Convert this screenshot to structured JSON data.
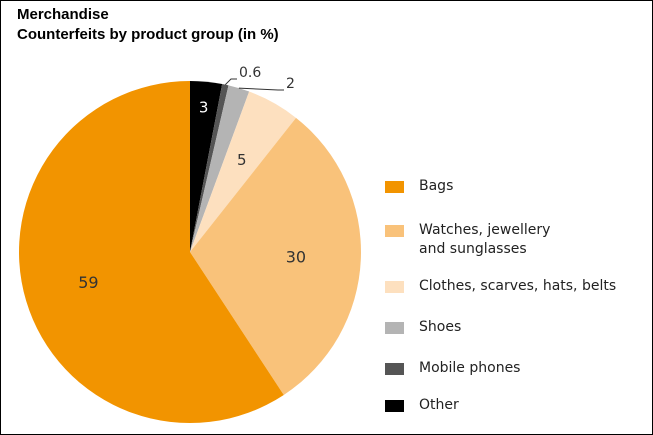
{
  "chart_data": {
    "type": "pie",
    "title": "Merchandise",
    "subtitle": "Counterfeits by product group (in %)",
    "start": "12 o'clock",
    "direction": "clockwise",
    "slices": [
      {
        "label": "Other",
        "value": 3,
        "value_label": "3",
        "color": "#000000",
        "label_color": "#ffffff"
      },
      {
        "label": "Mobile phones",
        "value": 0.6,
        "value_label": "0.6",
        "color": "#555555",
        "label_color": "#333333"
      },
      {
        "label": "Shoes",
        "value": 2,
        "value_label": "2",
        "color": "#b4b4b4",
        "label_color": "#333333"
      },
      {
        "label": "Clothes, scarves, hats, belts",
        "value": 5,
        "value_label": "5",
        "color": "#fde0bf",
        "label_color": "#333333"
      },
      {
        "label": "Watches, jewellery and sunglasses",
        "value": 30,
        "value_label": "30",
        "color": "#f9c27a",
        "label_color": "#333333"
      },
      {
        "label": "Bags",
        "value": 59,
        "value_label": "59",
        "color": "#f29400",
        "label_color": "#333333"
      }
    ],
    "legend": {
      "placement": "right",
      "items": [
        {
          "label_lines": [
            "Bags"
          ],
          "color": "#f29400"
        },
        {
          "label_lines": [
            "Watches, jewellery",
            "and sunglasses"
          ],
          "color": "#f9c27a"
        },
        {
          "label_lines": [
            "Clothes, scarves, hats, belts"
          ],
          "color": "#fde0bf"
        },
        {
          "label_lines": [
            "Shoes"
          ],
          "color": "#b4b4b4"
        },
        {
          "label_lines": [
            "Mobile phones"
          ],
          "color": "#555555"
        },
        {
          "label_lines": [
            "Other"
          ],
          "color": "#000000"
        }
      ]
    }
  }
}
